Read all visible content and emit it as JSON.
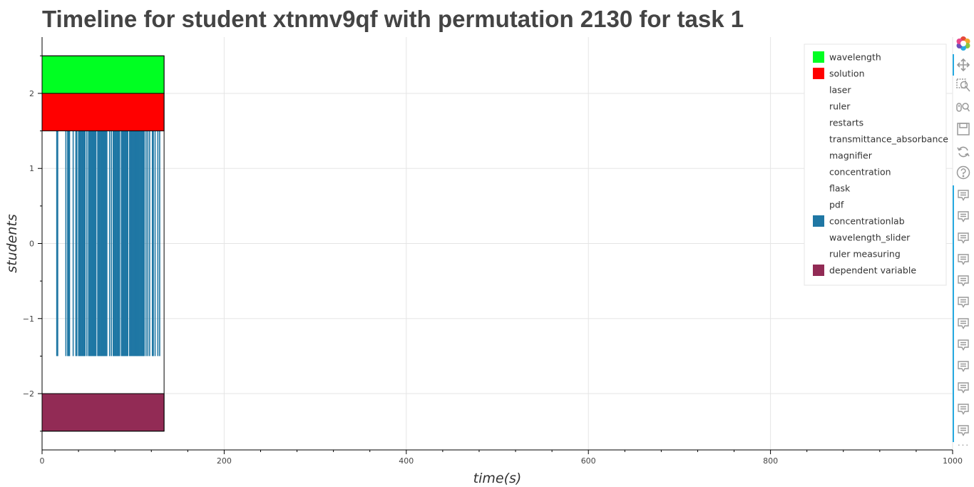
{
  "page": {
    "title": "Timeline for student xtnmv9qf with permutation 2130 for task 1"
  },
  "chart_data": {
    "type": "timeline",
    "title": "Timeline for student xtnmv9qf with permutation 2130 for task 1",
    "xlabel": "time(s)",
    "ylabel": "students",
    "xlim": [
      0,
      1000
    ],
    "ylim": [
      -2.75,
      2.75
    ],
    "x_ticks": [
      0,
      200,
      400,
      600,
      800,
      1000
    ],
    "y_ticks": [
      2,
      1,
      0,
      -1,
      -2
    ],
    "y_tick_labels": [
      "2",
      "1",
      "0",
      "−1",
      "−2"
    ],
    "grid": true,
    "legend_position": "top-right",
    "legend": [
      {
        "label": "wavelength",
        "color": "#00ff22"
      },
      {
        "label": "solution",
        "color": "#ff0000"
      },
      {
        "label": "laser",
        "color": null
      },
      {
        "label": "ruler",
        "color": null
      },
      {
        "label": "restarts",
        "color": null
      },
      {
        "label": "transmittance_absorbance",
        "color": null
      },
      {
        "label": "magnifier",
        "color": null
      },
      {
        "label": "concentration",
        "color": null
      },
      {
        "label": "flask",
        "color": null
      },
      {
        "label": "pdf",
        "color": null
      },
      {
        "label": "concentrationlab",
        "color": "#1f77a4"
      },
      {
        "label": "wavelength_slider",
        "color": null
      },
      {
        "label": "ruler measuring",
        "color": null
      },
      {
        "label": "dependent variable",
        "color": "#922b55"
      }
    ],
    "blocks": [
      {
        "series": "wavelength",
        "x_start": 0,
        "x_end": 134,
        "y_bottom": 2.0,
        "y_top": 2.5,
        "color": "#00ff22"
      },
      {
        "series": "solution",
        "x_start": 0,
        "x_end": 134,
        "y_bottom": 1.5,
        "y_top": 2.0,
        "color": "#ff0000"
      },
      {
        "series": "dependent variable",
        "x_start": 0,
        "x_end": 134,
        "y_bottom": -2.5,
        "y_top": -2.0,
        "color": "#922b55"
      }
    ],
    "session_box": {
      "x_start": 0,
      "x_end": 134,
      "y_bottom": -2.5,
      "y_top": 2.5
    },
    "events": {
      "series": "concentrationlab",
      "color": "#1f77a4",
      "y_bottom": -1.5,
      "y_top": 1.5,
      "times": [
        16,
        17,
        26,
        28,
        29,
        30,
        34,
        37,
        38,
        40,
        41,
        42,
        43,
        44,
        45,
        46,
        47,
        49,
        51,
        52,
        53,
        54,
        55,
        56,
        57,
        58,
        59,
        61,
        62,
        63,
        64,
        65,
        66,
        67,
        68,
        69,
        70,
        71,
        74,
        76,
        78,
        79,
        80,
        81,
        82,
        83,
        84,
        85,
        87,
        88,
        89,
        90,
        91,
        92,
        93,
        94,
        96,
        97,
        98,
        99,
        100,
        101,
        102,
        103,
        104,
        105,
        106,
        107,
        108,
        109,
        110,
        111,
        112,
        114,
        116,
        118,
        121,
        122,
        124,
        127,
        129
      ]
    }
  },
  "toolbar": {
    "items": [
      "bokeh-logo",
      "pan",
      "box-zoom",
      "wheel-zoom",
      "save",
      "reset",
      "help",
      "hover",
      "hover",
      "hover",
      "hover",
      "hover",
      "hover",
      "hover",
      "hover",
      "hover",
      "hover",
      "hover",
      "hover",
      "hover",
      "hover",
      "more"
    ]
  }
}
